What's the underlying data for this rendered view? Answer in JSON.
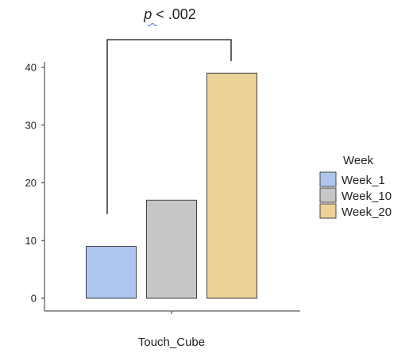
{
  "chart_data": {
    "type": "bar",
    "title": "",
    "xlabel": "",
    "ylabel": "",
    "categories": [
      "Touch_Cube"
    ],
    "ylim": [
      0,
      40
    ],
    "yticks": [
      0,
      10,
      20,
      30,
      40
    ],
    "grid": false,
    "legend_position": "right",
    "legend_title": "Week",
    "series": [
      {
        "name": "Week_1",
        "values": [
          9
        ],
        "color": "#aec5ee"
      },
      {
        "name": "Week_10",
        "values": [
          17
        ],
        "color": "#c6c6c6"
      },
      {
        "name": "Week_20",
        "values": [
          39
        ],
        "color": "#ecd196"
      }
    ],
    "annotation": {
      "p_letter": "p",
      "p_rest": " < .002"
    }
  }
}
